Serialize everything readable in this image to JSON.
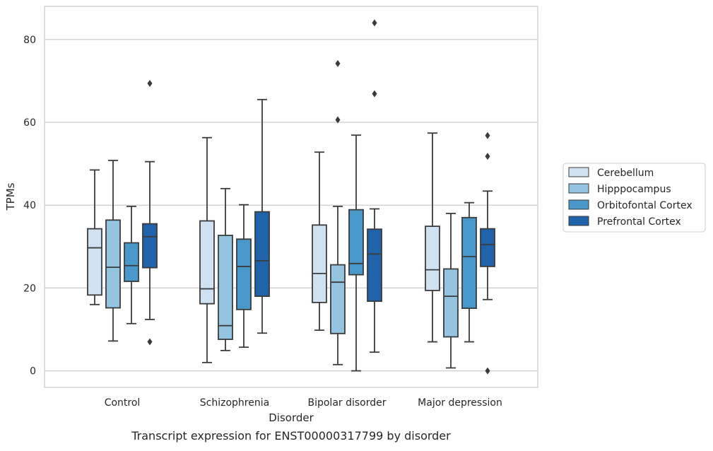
{
  "chart_data": {
    "type": "box",
    "caption": "Transcript expression for ENST00000317799 by disorder",
    "xlabel": "Disorder",
    "ylabel": "TPMs",
    "ylim": [
      -4,
      88
    ],
    "yticks": [
      0,
      20,
      40,
      60,
      80
    ],
    "grid": "horizontal",
    "legend_placement": "right",
    "categories": [
      "Control",
      "Schizophrenia",
      "Bipolar disorder",
      "Major depression"
    ],
    "series": [
      {
        "name": "Cerebellum",
        "color": "#d0e1f2",
        "boxes": [
          {
            "whislo": 16,
            "q1": 18.3,
            "median": 29.7,
            "q3": 34.3,
            "whishi": 48.5,
            "fliers": []
          },
          {
            "whislo": 2,
            "q1": 16.2,
            "median": 19.8,
            "q3": 36.2,
            "whishi": 56.3,
            "fliers": []
          },
          {
            "whislo": 9.8,
            "q1": 16.5,
            "median": 23.5,
            "q3": 35.2,
            "whishi": 52.8,
            "fliers": []
          },
          {
            "whislo": 7,
            "q1": 19.4,
            "median": 24.4,
            "q3": 34.9,
            "whishi": 57.4,
            "fliers": []
          }
        ]
      },
      {
        "name": "Hipppocampus",
        "color": "#94c4df",
        "boxes": [
          {
            "whislo": 7.2,
            "q1": 15.2,
            "median": 25,
            "q3": 36.4,
            "whishi": 50.8,
            "fliers": []
          },
          {
            "whislo": 4.9,
            "q1": 7.6,
            "median": 10.9,
            "q3": 32.7,
            "whishi": 44,
            "fliers": []
          },
          {
            "whislo": 1.5,
            "q1": 9,
            "median": 21.4,
            "q3": 25.6,
            "whishi": 39.7,
            "fliers": [
              60.6,
              74.2
            ]
          },
          {
            "whislo": 0.7,
            "q1": 8.2,
            "median": 18,
            "q3": 24.6,
            "whishi": 38,
            "fliers": []
          }
        ]
      },
      {
        "name": "Orbitofontal Cortex",
        "color": "#4a98c9",
        "boxes": [
          {
            "whislo": 11.4,
            "q1": 21.6,
            "median": 25.4,
            "q3": 30.9,
            "whishi": 39.7,
            "fliers": []
          },
          {
            "whislo": 5.7,
            "q1": 14.8,
            "median": 25.2,
            "q3": 31.8,
            "whishi": 40.1,
            "fliers": []
          },
          {
            "whislo": 0,
            "q1": 23.2,
            "median": 25.9,
            "q3": 38.9,
            "whishi": 56.9,
            "fliers": []
          },
          {
            "whislo": 7,
            "q1": 15.1,
            "median": 27.6,
            "q3": 37,
            "whishi": 40.6,
            "fliers": []
          }
        ]
      },
      {
        "name": "Prefrontal Cortex",
        "color": "#2163aa",
        "boxes": [
          {
            "whislo": 12.4,
            "q1": 24.9,
            "median": 32.4,
            "q3": 35.5,
            "whishi": 50.5,
            "fliers": [
              7,
              69.4
            ]
          },
          {
            "whislo": 9.1,
            "q1": 18,
            "median": 26.6,
            "q3": 38.4,
            "whishi": 65.5,
            "fliers": []
          },
          {
            "whislo": 4.5,
            "q1": 16.8,
            "median": 28.2,
            "q3": 34.2,
            "whishi": 39.1,
            "fliers": [
              66.9,
              84
            ]
          },
          {
            "whislo": 17.2,
            "q1": 25.2,
            "median": 30.5,
            "q3": 34.3,
            "whishi": 43.4,
            "fliers": [
              0,
              51.8,
              56.8
            ]
          }
        ]
      }
    ]
  }
}
